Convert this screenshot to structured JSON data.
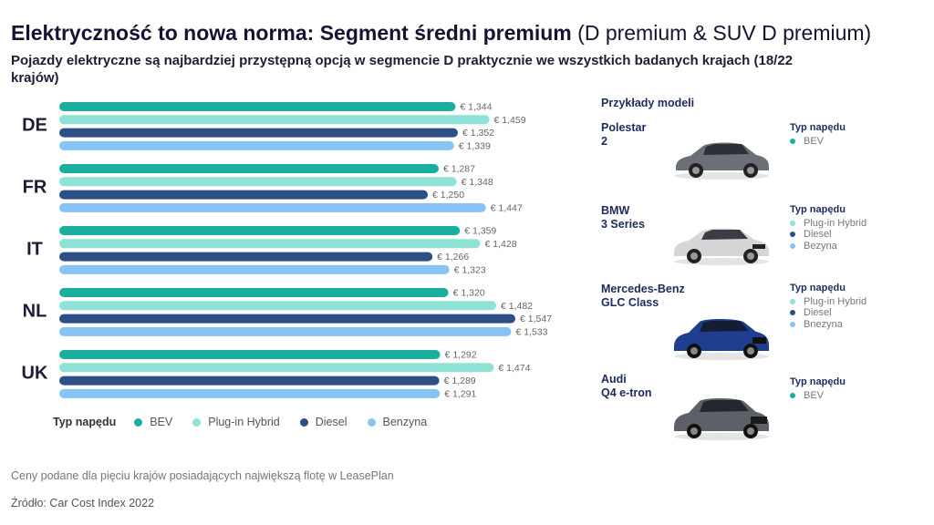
{
  "title": {
    "bold": "Elektryczność to nowa norma: Segment średni premium",
    "light": "(D premium & SUV D premium)"
  },
  "subtitle": "Pojazdy elektryczne są najbardziej przystępną opcją w segmencie D praktycznie we wszystkich badanych krajach (18/22 krajów)",
  "colors": {
    "BEV": "#1aae9f",
    "Plug-in Hybrid": "#8fe3d6",
    "Diesel": "#2e4f86",
    "Benzyna": "#88c3f5"
  },
  "chart_data": {
    "type": "bar",
    "orientation": "horizontal",
    "categories": [
      "DE",
      "FR",
      "IT",
      "NL",
      "UK"
    ],
    "series": [
      {
        "name": "BEV",
        "values": [
          1344,
          1287,
          1359,
          1320,
          1292
        ],
        "labels": [
          "€ 1,344",
          "€ 1,287",
          "€ 1,359",
          "€ 1,320",
          "€ 1,292"
        ]
      },
      {
        "name": "Plug-in Hybrid",
        "values": [
          1459,
          1348,
          1428,
          1482,
          1474
        ],
        "labels": [
          "€ 1,459",
          "€ 1,348",
          "€ 1,428",
          "€ 1,482",
          "€ 1,474"
        ]
      },
      {
        "name": "Diesel",
        "values": [
          1352,
          1250,
          1266,
          1547,
          1289
        ],
        "labels": [
          "€ 1,352",
          "€ 1,250",
          "€ 1,266",
          "€ 1,547",
          "€ 1,289"
        ]
      },
      {
        "name": "Benzyna",
        "values": [
          1339,
          1447,
          1323,
          1533,
          1291
        ],
        "labels": [
          "€ 1,339",
          "€ 1,447",
          "€ 1,323",
          "€ 1,533",
          "€ 1,291"
        ]
      }
    ],
    "legend_position": "bottom",
    "grid": false
  },
  "legend": {
    "title": "Typ napędu",
    "items": [
      "BEV",
      "Plug-in Hybrid",
      "Diesel",
      "Benzyna"
    ]
  },
  "examples": {
    "title": "Przykłady modeli",
    "models": [
      {
        "name": [
          "Polestar",
          "2"
        ],
        "car_color": "#6b6f76",
        "drive_title": "Typ napędu",
        "drives": [
          {
            "label": "BEV",
            "color": "#1aae9f"
          }
        ]
      },
      {
        "name": [
          "BMW",
          "3 Series"
        ],
        "car_color": "#d6d6d8",
        "drive_title": "Typ napędu",
        "drives": [
          {
            "label": "Plug-in Hybrid",
            "color": "#8fe3d6"
          },
          {
            "label": "Diesel",
            "color": "#2e4f86"
          },
          {
            "label": "Bezyna",
            "color": "#88c3f5"
          }
        ]
      },
      {
        "name": [
          "Mercedes-Benz",
          "GLC Class"
        ],
        "car_color": "#1f3e8f",
        "drive_title": "Typ napędu",
        "drives": [
          {
            "label": "Plug-in Hybrid",
            "color": "#8fe3d6"
          },
          {
            "label": "Diesel",
            "color": "#2e4f86"
          },
          {
            "label": "Bnezyna",
            "color": "#88c3f5"
          }
        ]
      },
      {
        "name": [
          "Audi",
          "Q4 e-tron"
        ],
        "car_color": "#5d6067",
        "drive_title": "Typ napędu",
        "drives": [
          {
            "label": "BEV",
            "color": "#1aae9f"
          }
        ]
      }
    ]
  },
  "footer": {
    "note": "Ceny podane dla pięciu krajów posiadających największą flotę w LeasePlan",
    "source": "Źródło: Car Cost Index 2022"
  }
}
